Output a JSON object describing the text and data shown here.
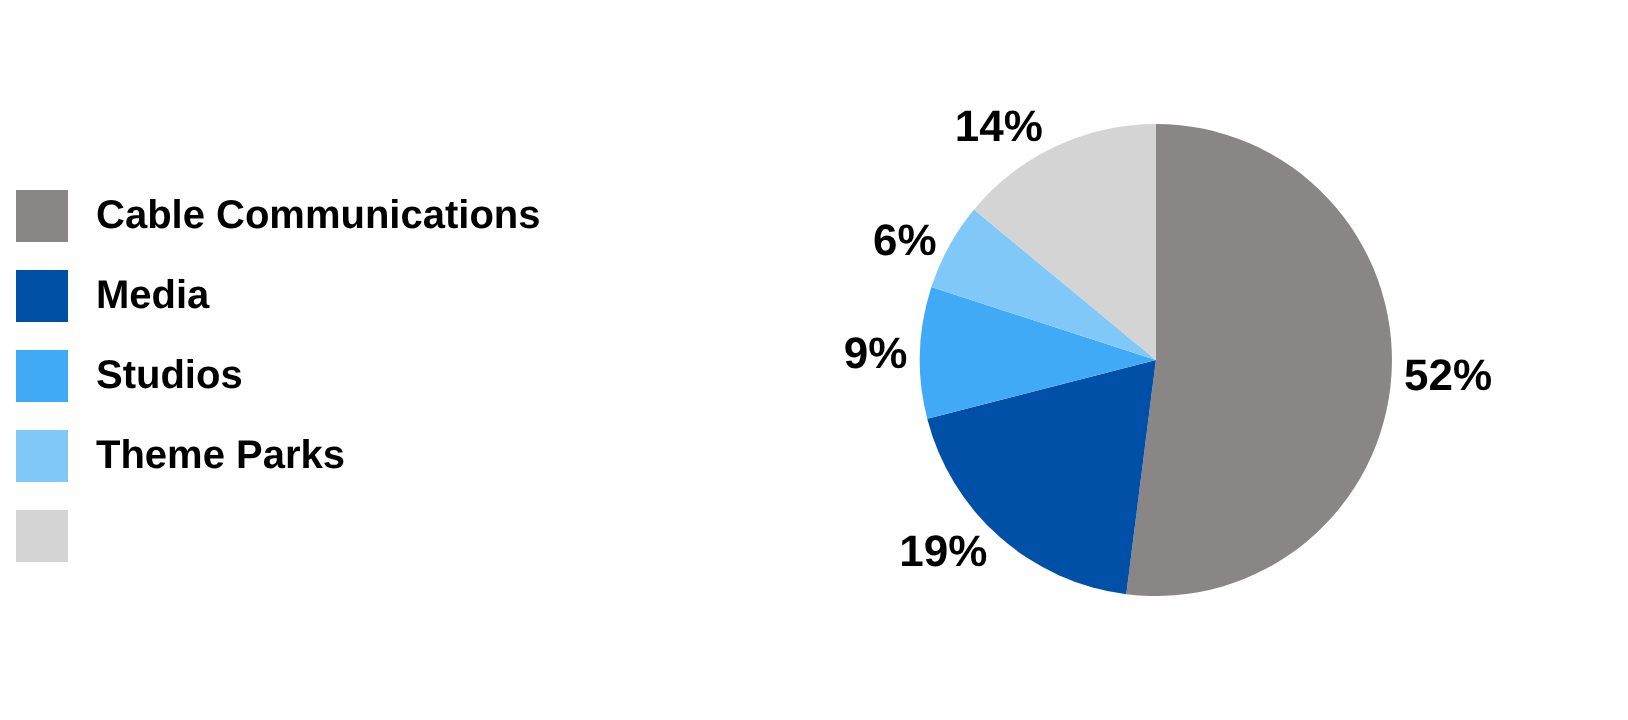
{
  "chart_data": {
    "type": "pie",
    "categories": [
      "Cable Communications",
      "Media",
      "Studios",
      "Theme Parks",
      null
    ],
    "values": [
      52,
      19,
      9,
      6,
      14
    ],
    "value_labels": [
      "52%",
      "19%",
      "9%",
      "6%",
      "14%"
    ],
    "colors": [
      "#8a8685",
      "#0050a8",
      "#40aaf6",
      "#80c8f8",
      "#d4d4d4"
    ],
    "legend": "left"
  }
}
